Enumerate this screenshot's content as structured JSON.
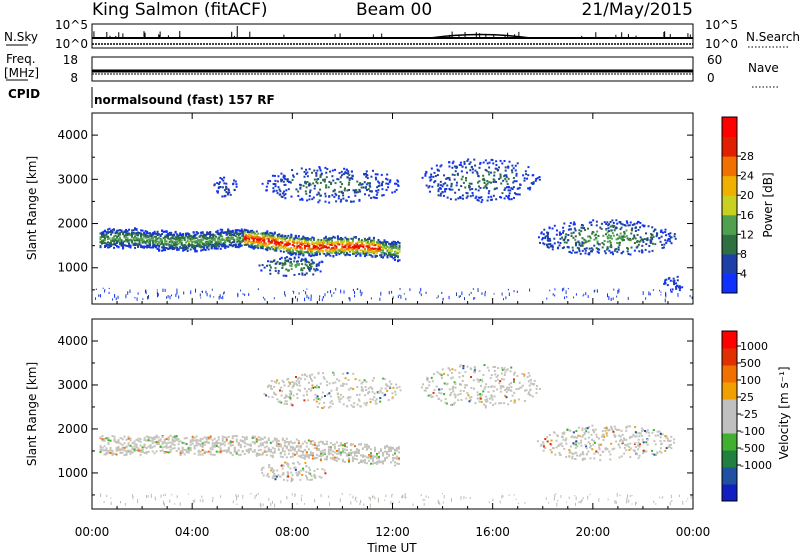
{
  "header": {
    "station": "King Salmon (fitACF)",
    "beam": "Beam 00",
    "date": "21/May/2015"
  },
  "mode": {
    "cpid_label": "CPID",
    "program": "normalsound (fast) 157 RF"
  },
  "strips": {
    "nsky": {
      "label": "N.Sky",
      "right_label": "N.Search",
      "left_ticks": [
        "10^5",
        "10^0"
      ],
      "right_ticks": [
        "10^5",
        "10^0"
      ]
    },
    "freq": {
      "label_line1": "Freq.",
      "label_line2": "[MHz]",
      "right_label": "Nave",
      "left_ticks": [
        "18",
        "8"
      ],
      "right_ticks": [
        "60",
        "0"
      ]
    }
  },
  "chart_data": [
    {
      "type": "heatmap",
      "panel": "power",
      "ylabel": "Slant Range [km]",
      "xlabel": "",
      "xlim": [
        "00:00",
        "24:00"
      ],
      "ylim": [
        180,
        4500
      ],
      "yticks": [
        "1000",
        "2000",
        "3000",
        "4000"
      ],
      "colorbar": {
        "label": "Power [dB]",
        "ticks": [
          "4",
          "8",
          "12",
          "16",
          "20",
          "24",
          "28"
        ],
        "colors": [
          "#1030ff",
          "#1c40a8",
          "#2e7040",
          "#50a050",
          "#c8d020",
          "#f0b000",
          "#f07000",
          "#e02000",
          "#ff0000"
        ]
      },
      "features": [
        {
          "time": "00:30–06:00",
          "range_km": "1400–1800",
          "level": "4–16"
        },
        {
          "time": "06:00–12:00",
          "range_km": "1300–2000",
          "level": "16–28"
        },
        {
          "time": "07:00–12:00",
          "range_km": "2600–3500",
          "level": "4–8"
        },
        {
          "time": "14:00–18:00",
          "range_km": "2600–3500",
          "level": "4–8"
        },
        {
          "time": "17:00–23:30",
          "range_km": "1200–2200",
          "level": "4–12"
        }
      ]
    },
    {
      "type": "heatmap",
      "panel": "velocity",
      "ylabel": "Slant Range [km]",
      "xlabel": "Time UT",
      "xlim": [
        "00:00",
        "24:00"
      ],
      "ylim": [
        180,
        4500
      ],
      "yticks": [
        "1000",
        "2000",
        "3000",
        "4000"
      ],
      "xticks": [
        "00:00",
        "04:00",
        "08:00",
        "12:00",
        "16:00",
        "20:00",
        "00:00"
      ],
      "colorbar": {
        "label": "Velocity [m s⁻¹]",
        "ticks": [
          "1000",
          "500",
          "100",
          "25",
          "-25",
          "-100",
          "-500",
          "-1000"
        ],
        "colors": [
          "#1020c0",
          "#2050a0",
          "#208040",
          "#40b030",
          "#c0c0c0",
          "#c0c0c0",
          "#f0a000",
          "#f07000",
          "#e03000",
          "#ff0000"
        ]
      }
    }
  ]
}
